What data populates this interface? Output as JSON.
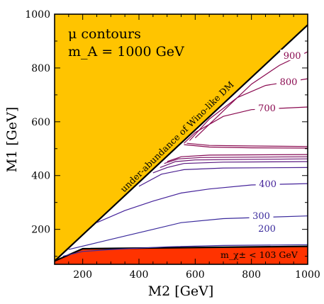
{
  "chart_data": {
    "type": "line",
    "xlabel": "M2 [GeV]",
    "ylabel": "M1 [GeV]",
    "xlim": [
      100,
      1000
    ],
    "ylim": [
      70,
      1000
    ],
    "xticks": [
      200,
      400,
      600,
      800,
      1000
    ],
    "yticks": [
      200,
      400,
      600,
      800,
      1000
    ],
    "annotation_title": "μ contours",
    "annotation_mA": "m_A = 1000 GeV",
    "region_wino_label": "under-abundance of Wino-like DM",
    "region_chargino_label": "m_χ± < 103 GeV",
    "regions": [
      {
        "name": "under-abundance of Wino-like DM",
        "color": "#ffc400",
        "boundary": [
          [
            100,
            82
          ],
          [
            1000,
            960
          ]
        ]
      },
      {
        "name": "m_χ± < 103 GeV",
        "color": "#ff3300",
        "boundary": [
          [
            100,
            82
          ],
          [
            200,
            128
          ],
          [
            1000,
            137
          ]
        ]
      }
    ],
    "contours": [
      {
        "label": "200",
        "color": "#3a2a9c",
        "label_at": [
          855,
          205
        ],
        "points": [
          [
            130,
            100
          ],
          [
            200,
            118
          ],
          [
            300,
            125
          ],
          [
            500,
            135
          ],
          [
            700,
            140
          ],
          [
            1000,
            143
          ]
        ]
      },
      {
        "label": "300",
        "color": "#3a2a9c",
        "label_at": [
          835,
          252
        ],
        "points": [
          [
            150,
            125
          ],
          [
            250,
            150
          ],
          [
            350,
            175
          ],
          [
            450,
            200
          ],
          [
            550,
            225
          ],
          [
            700,
            240
          ],
          [
            1000,
            250
          ]
        ]
      },
      {
        "label": "400",
        "color": "#45239a",
        "label_at": [
          858,
          370
        ],
        "points": [
          [
            250,
            225
          ],
          [
            350,
            270
          ],
          [
            450,
            305
          ],
          [
            550,
            335
          ],
          [
            650,
            350
          ],
          [
            800,
            365
          ],
          [
            1000,
            370
          ]
        ]
      },
      {
        "label": "",
        "color": "#4a1f90",
        "points": [
          [
            400,
            360
          ],
          [
            480,
            405
          ],
          [
            560,
            422
          ],
          [
            700,
            428
          ],
          [
            1000,
            430
          ]
        ]
      },
      {
        "label": "",
        "color": "#5a1880",
        "points": [
          [
            450,
            410
          ],
          [
            500,
            430
          ],
          [
            560,
            445
          ],
          [
            700,
            450
          ],
          [
            1000,
            452
          ]
        ]
      },
      {
        "label": "",
        "color": "#6a1270",
        "points": [
          [
            475,
            430
          ],
          [
            530,
            452
          ],
          [
            600,
            458
          ],
          [
            1000,
            462
          ]
        ]
      },
      {
        "label": "",
        "color": "#7a0c60",
        "points": [
          [
            490,
            445
          ],
          [
            540,
            462
          ],
          [
            620,
            467
          ],
          [
            1000,
            470
          ]
        ]
      },
      {
        "label": "",
        "color": "#850a55",
        "points": [
          [
            500,
            452
          ],
          [
            550,
            470
          ],
          [
            650,
            476
          ],
          [
            1000,
            478
          ]
        ]
      },
      {
        "label": "700",
        "color": "#8a0a50",
        "label_at": [
          855,
          652
        ],
        "points": [
          [
            560,
            520
          ],
          [
            600,
            560
          ],
          [
            700,
            620
          ],
          [
            800,
            645
          ],
          [
            1000,
            655
          ]
        ]
      },
      {
        "label": "800",
        "color": "#8a0a50",
        "label_at": [
          932,
          750
        ],
        "points": [
          [
            580,
            530
          ],
          [
            650,
            610
          ],
          [
            750,
            690
          ],
          [
            850,
            735
          ],
          [
            1000,
            760
          ]
        ]
      },
      {
        "label": "900",
        "color": "#8a0a50",
        "label_at": [
          945,
          847
        ],
        "points": [
          [
            600,
            540
          ],
          [
            700,
            640
          ],
          [
            800,
            740
          ],
          [
            900,
            810
          ],
          [
            1000,
            860
          ]
        ]
      }
    ],
    "fan_lines": [
      {
        "color": "#8a0a50",
        "points": [
          [
            570,
            520
          ],
          [
            650,
            512
          ],
          [
            800,
            510
          ],
          [
            1000,
            508
          ]
        ]
      },
      {
        "color": "#8a0a50",
        "points": [
          [
            560,
            515
          ],
          [
            650,
            506
          ],
          [
            800,
            503
          ],
          [
            1000,
            502
          ]
        ]
      }
    ]
  }
}
